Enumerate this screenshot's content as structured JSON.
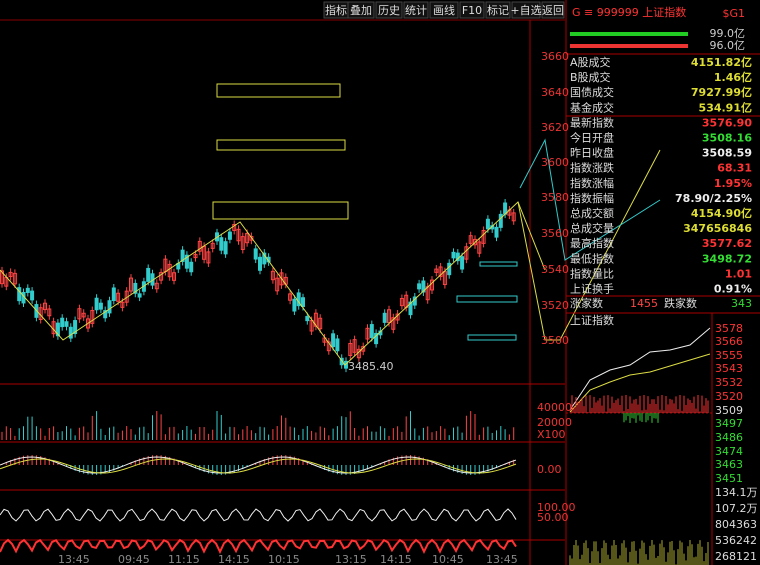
{
  "toolbar": [
    "指标",
    "叠加",
    "历史",
    "统计",
    "画线",
    "F10",
    "标记",
    "+自选",
    "返回"
  ],
  "main_axis": [
    "3660",
    "3640",
    "3620",
    "3600",
    "3580",
    "3560",
    "3540",
    "3520",
    "3500"
  ],
  "low_label": "3485.40",
  "volume_axis": [
    "40000",
    "20000",
    "X100"
  ],
  "macd_axis": [
    "0.00"
  ],
  "kdj_axis": [
    "100.00",
    "50.00"
  ],
  "time_labels": [
    "13:45",
    "09:45",
    "11:15",
    "14:15",
    "10:15",
    "13:15",
    "14:15",
    "10:45",
    "13:45"
  ],
  "panel": {
    "code": "G ≡ 999999 上证指数",
    "tag": "$G1",
    "bar_labels": [
      "99.0亿",
      "96.0亿"
    ],
    "rows": [
      [
        "A股成交",
        "4151.82亿"
      ],
      [
        "B股成交",
        "1.46亿"
      ],
      [
        "国债成交",
        "7927.99亿"
      ],
      [
        "基金成交",
        "534.91亿"
      ],
      [
        "最新指数",
        "3576.90"
      ],
      [
        "今日开盘",
        "3508.16"
      ],
      [
        "昨日收盘",
        "3508.59"
      ],
      [
        "指数涨跌",
        "68.31"
      ],
      [
        "指数涨幅",
        "1.95%"
      ],
      [
        "指数振幅",
        "78.90/2.25%"
      ],
      [
        "总成交额",
        "4154.90亿"
      ],
      [
        "总成交量",
        "347656846"
      ],
      [
        "最高指数",
        "3577.62"
      ],
      [
        "最低指数",
        "3498.72"
      ],
      [
        "指数量比",
        "1.01"
      ],
      [
        "上证换手",
        "0.91%"
      ]
    ],
    "up_label": "涨家数",
    "up_count": "1455",
    "down_label": "跌家数",
    "down_count": "343"
  },
  "mini": {
    "title": "上证指数",
    "axis": [
      "3578",
      "3566",
      "3555",
      "3543",
      "3532",
      "3520",
      "3509",
      "3497",
      "3486",
      "3474",
      "3463",
      "3451",
      "134.1万",
      "107.2万",
      "804363",
      "536242",
      "268121"
    ]
  }
}
